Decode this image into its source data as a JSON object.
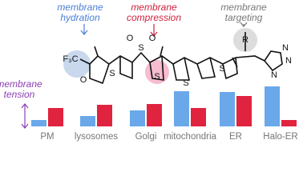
{
  "annotations": {
    "hydration": [
      "membrane",
      "hydration"
    ],
    "compression": [
      "membrane",
      "compression"
    ],
    "targeting": [
      "membrane",
      "targeting"
    ],
    "tension": [
      "membrane",
      "tension"
    ]
  },
  "structure": {
    "atoms": [
      "F₃C",
      "O",
      "S",
      "O",
      "O",
      "S",
      "S",
      "S",
      "S",
      "N",
      "N",
      "N",
      "R"
    ]
  },
  "chart_data": {
    "type": "bar",
    "categories": [
      "PM",
      "lysosomes",
      "Golgi",
      "mitochondria",
      "ER",
      "Halo-ER"
    ],
    "series": [
      {
        "color": "#6aa8ea",
        "values": [
          8,
          13,
          20,
          44,
          43,
          50
        ]
      },
      {
        "color": "#e0233f",
        "values": [
          23,
          27,
          28,
          23,
          38,
          8
        ]
      }
    ]
  }
}
